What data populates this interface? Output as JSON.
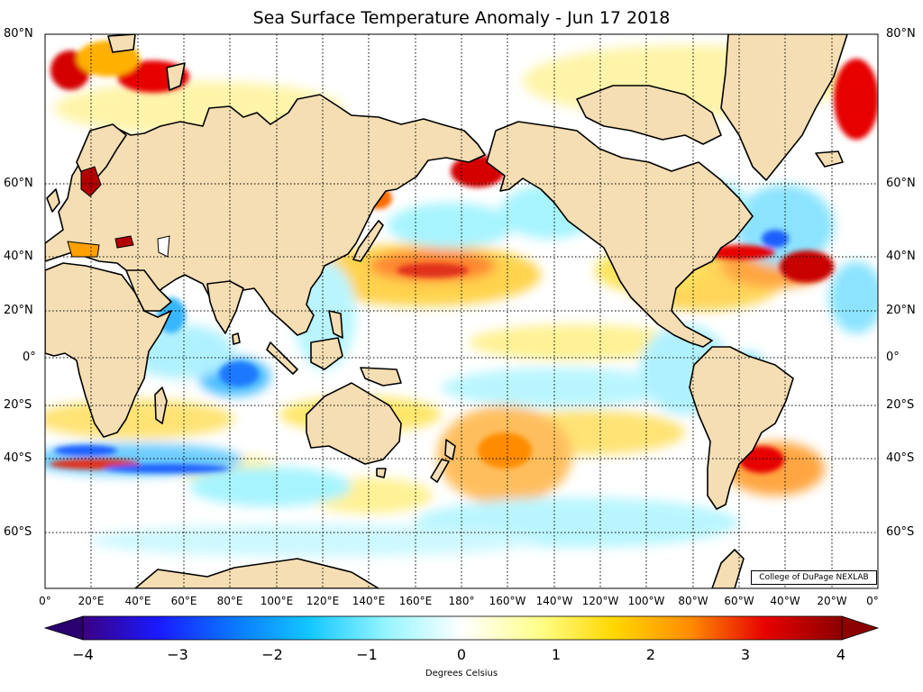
{
  "title": "Sea Surface Temperature Anomaly - Jun 17 2018",
  "map": {
    "projection": "equirectangular",
    "lon_range": [
      0,
      360
    ],
    "lat_range": [
      -80,
      80
    ],
    "lat_labels": [
      "80°N",
      "60°N",
      "40°N",
      "20°N",
      "0°",
      "20°S",
      "40°S",
      "60°S"
    ],
    "lon_labels": [
      "0°",
      "20°E",
      "40°E",
      "60°E",
      "80°E",
      "100°E",
      "120°E",
      "140°E",
      "160°E",
      "180°",
      "160°W",
      "140°W",
      "120°W",
      "100°W",
      "80°W",
      "60°W",
      "40°W",
      "20°W",
      "0°"
    ],
    "gridlines": "dotted",
    "land_color": "#f5deb3",
    "coastline_color": "#000000"
  },
  "credit": "College of DuPage NEXLAB",
  "colorbar": {
    "min": -4,
    "max": 4,
    "ticks": [
      "−4",
      "−3",
      "−2",
      "−1",
      "0",
      "1",
      "2",
      "3",
      "4"
    ],
    "label": "Degrees Celsius",
    "colors": [
      "#3a0083",
      "#1a1aff",
      "#0a78ff",
      "#14c8ff",
      "#96f5ff",
      "#ffffff",
      "#ffff8c",
      "#ffd700",
      "#ff8c00",
      "#e60000",
      "#8b0000"
    ]
  }
}
